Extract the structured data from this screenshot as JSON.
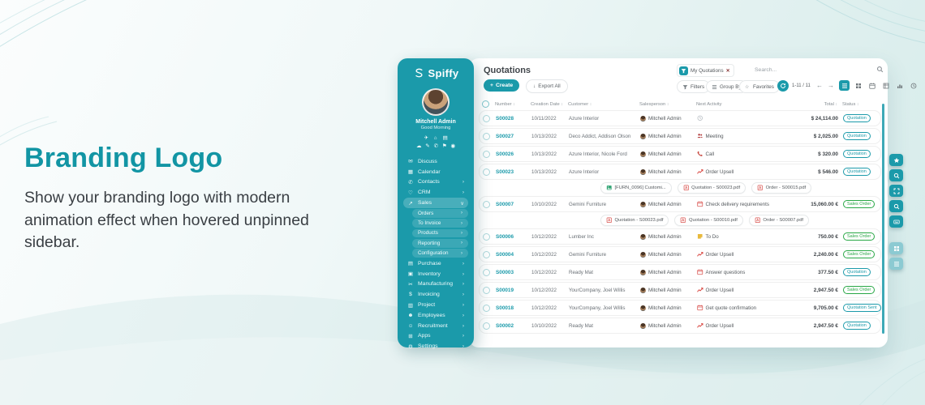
{
  "hero": {
    "title": "Branding Logo",
    "description": "Show your branding logo with modern animation effect when hovered unpinned sidebar."
  },
  "sidebar": {
    "brand": "Spiffy",
    "user": {
      "name": "Mitchell Admin",
      "greeting": "Good Morning"
    },
    "quick_icons_row1": [
      "send-icon",
      "home-icon",
      "card-icon"
    ],
    "quick_icons_row2": [
      "cloud-icon",
      "paint-icon",
      "phone-icon",
      "lock-icon",
      "location-icon"
    ],
    "menu_top": [
      {
        "label": "Discuss",
        "icon": "discuss",
        "chevron": false
      },
      {
        "label": "Calendar",
        "icon": "calendar",
        "chevron": false
      },
      {
        "label": "Contacts",
        "icon": "contacts",
        "chevron": true
      },
      {
        "label": "CRM",
        "icon": "crm",
        "chevron": true
      },
      {
        "label": "Sales",
        "icon": "sales",
        "chevron": "down",
        "active": true
      }
    ],
    "sales_submenu": [
      "Orders",
      "To Invoice",
      "Products",
      "Reporting",
      "Configuration"
    ],
    "menu_bottom": [
      {
        "label": "Purchase",
        "icon": "purchase",
        "chevron": true
      },
      {
        "label": "Inventory",
        "icon": "inventory",
        "chevron": true
      },
      {
        "label": "Manufacturing",
        "icon": "manufacturing",
        "chevron": true
      },
      {
        "label": "Invoicing",
        "icon": "invoicing",
        "chevron": true
      },
      {
        "label": "Project",
        "icon": "project",
        "chevron": true
      },
      {
        "label": "Employees",
        "icon": "employees",
        "chevron": true
      },
      {
        "label": "Recruitment",
        "icon": "recruitment",
        "chevron": true
      },
      {
        "label": "Apps",
        "icon": "apps",
        "chevron": true
      },
      {
        "label": "Settings",
        "icon": "settings",
        "chevron": true
      }
    ]
  },
  "topbar": {
    "title": "Quotations",
    "create_label": "Create",
    "export_label": "Export All",
    "filter_chip": "My Quotations",
    "search_placeholder": "Search..."
  },
  "controls": {
    "filters": "Filters",
    "group_by": "Group By",
    "favorites": "Favorites",
    "pager": "1-11 / 11",
    "views": [
      "list",
      "kanban",
      "calendar",
      "pivot",
      "graph",
      "activity"
    ],
    "active_view": "list"
  },
  "table": {
    "columns": [
      {
        "label": "Number",
        "sortable": true
      },
      {
        "label": "Creation Date",
        "sortable": true
      },
      {
        "label": "Customer",
        "sortable": true
      },
      {
        "label": "Salesperson",
        "sortable": true
      },
      {
        "label": "Next Activity",
        "sortable": false
      },
      {
        "label": "Total",
        "sortable": true
      },
      {
        "label": "Status",
        "sortable": true
      }
    ],
    "rows": [
      {
        "type": "data",
        "number": "S00028",
        "date": "10/11/2022",
        "customer": "Azure Interior",
        "salesperson": "Mitchell Admin",
        "activity_icon": "clock",
        "activity": "",
        "total": "$ 24,114.00",
        "status": "Quotation"
      },
      {
        "type": "data",
        "number": "S00027",
        "date": "10/13/2022",
        "customer": "Deco Addict, Addison Olson",
        "salesperson": "Mitchell Admin",
        "activity_icon": "meeting",
        "activity": "Meeting",
        "total": "$ 2,025.00",
        "status": "Quotation"
      },
      {
        "type": "data",
        "number": "S00026",
        "date": "10/13/2022",
        "customer": "Azure Interior, Nicole Ford",
        "salesperson": "Mitchell Admin",
        "activity_icon": "call",
        "activity": "Call",
        "total": "$ 320.00",
        "status": "Quotation"
      },
      {
        "type": "data",
        "number": "S00023",
        "date": "10/13/2022",
        "customer": "Azure Interior",
        "salesperson": "Mitchell Admin",
        "activity_icon": "upsell",
        "activity": "Order Upsell",
        "total": "$ 546.00",
        "status": "Quotation"
      },
      {
        "type": "attachments",
        "files": [
          {
            "icon": "image",
            "name": "[FURN_0096] Customi..."
          },
          {
            "icon": "pdf",
            "name": "Quotation - S00023.pdf"
          },
          {
            "icon": "pdf",
            "name": "Order - S00015.pdf"
          }
        ]
      },
      {
        "type": "data",
        "number": "S00007",
        "date": "10/10/2022",
        "customer": "Gemini Furniture",
        "salesperson": "Mitchell Admin",
        "activity_icon": "calendar",
        "activity": "Check delivery requirements",
        "total": "15,060.00 €",
        "status": "Sales Order"
      },
      {
        "type": "attachments",
        "files": [
          {
            "icon": "pdf",
            "name": "Quotation - S00023.pdf"
          },
          {
            "icon": "pdf",
            "name": "Quotation - S00010.pdf"
          },
          {
            "icon": "pdf",
            "name": "Order - S00007.pdf"
          }
        ]
      },
      {
        "type": "data",
        "number": "S00006",
        "date": "10/12/2022",
        "customer": "Lumber Inc",
        "salesperson": "Mitchell Admin",
        "activity_icon": "todo",
        "activity": "To Do",
        "total": "750.00 €",
        "status": "Sales Order"
      },
      {
        "type": "data",
        "number": "S00004",
        "date": "10/12/2022",
        "customer": "Gemini Furniture",
        "salesperson": "Mitchell Admin",
        "activity_icon": "upsell",
        "activity": "Order Upsell",
        "total": "2,240.00 €",
        "status": "Sales Order"
      },
      {
        "type": "data",
        "number": "S00003",
        "date": "10/12/2022",
        "customer": "Ready Mat",
        "salesperson": "Mitchell Admin",
        "activity_icon": "calendar",
        "activity": "Answer questions",
        "total": "377.50 €",
        "status": "Quotation"
      },
      {
        "type": "data",
        "number": "S00019",
        "date": "10/12/2022",
        "customer": "YourCompany, Joel Willis",
        "salesperson": "Mitchell Admin",
        "activity_icon": "upsell",
        "activity": "Order Upsell",
        "total": "2,947.50 €",
        "status": "Sales Order"
      },
      {
        "type": "data",
        "number": "S00018",
        "date": "10/12/2022",
        "customer": "YourCompany, Joel Willis",
        "salesperson": "Mitchell Admin",
        "activity_icon": "calendar",
        "activity": "Get quote confirmation",
        "total": "9,705.00 €",
        "status": "Quotation Sent"
      },
      {
        "type": "data",
        "number": "S00002",
        "date": "10/10/2022",
        "customer": "Ready Mat",
        "salesperson": "Mitchell Admin",
        "activity_icon": "upsell",
        "activity": "Order Upsell",
        "total": "2,947.50 €",
        "status": "Quotation"
      }
    ]
  },
  "side_toolbar": {
    "buttons": [
      {
        "name": "favorites-shortcut-button",
        "icon": "star",
        "light": false
      },
      {
        "name": "search-shortcut-button",
        "icon": "search",
        "light": false
      },
      {
        "name": "fullscreen-button",
        "icon": "expand",
        "light": false
      },
      {
        "name": "zoom-button",
        "icon": "search",
        "light": false
      },
      {
        "name": "keyboard-shortcuts-button",
        "icon": "keyboard",
        "light": false
      },
      {
        "name": "extra-tool-button-1",
        "icon": "grid",
        "light": true
      },
      {
        "name": "extra-tool-button-2",
        "icon": "listview",
        "light": true
      }
    ]
  },
  "colors": {
    "teal": "#1b9aaa",
    "hero_accent": "#1295a4",
    "status": {
      "Quotation": "#1b9aaa",
      "Quotation Sent": "#1b9aaa",
      "Sales Order": "#28a745"
    },
    "activity": {
      "clock": "#b6bcc2",
      "meeting": "#ad2f2f",
      "call": "#c7463d",
      "upsell": "#d8453f",
      "calendar": "#d9534f",
      "todo": "#e8b93c"
    },
    "file": {
      "pdf": "#d9534f",
      "image": "#2fa372"
    }
  }
}
